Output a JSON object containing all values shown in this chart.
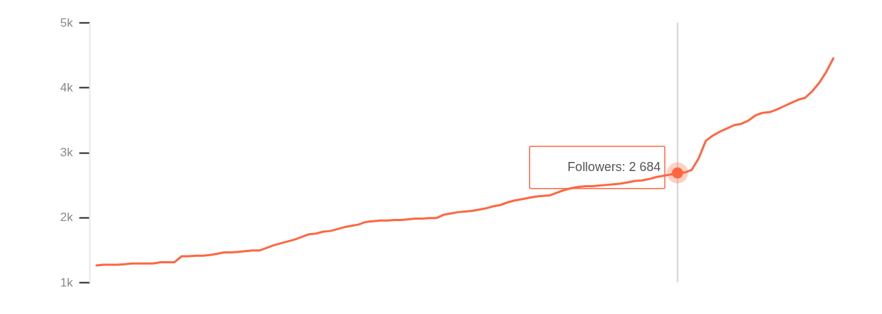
{
  "chart_data": {
    "type": "line",
    "categories": [
      null,
      null,
      null,
      null,
      null,
      null,
      null,
      null,
      null,
      null,
      null,
      null,
      null,
      null,
      null,
      null,
      null,
      null,
      null,
      null,
      null,
      null,
      null,
      null,
      null,
      null,
      null,
      null,
      null,
      null,
      null,
      null,
      null,
      null,
      null,
      null,
      null,
      null,
      null,
      null,
      null,
      null,
      null,
      null,
      null,
      null,
      null,
      null,
      null,
      null,
      null,
      null,
      null,
      null,
      null,
      null,
      null,
      null,
      null,
      null,
      null,
      null,
      null,
      null,
      null,
      null,
      null,
      null,
      null,
      null,
      null,
      null,
      null,
      null,
      null,
      null,
      null,
      null,
      null,
      null,
      null,
      null,
      null,
      null,
      null,
      null,
      null,
      null,
      null,
      null,
      null,
      null,
      null,
      null,
      null,
      null,
      null,
      null,
      null,
      null,
      null,
      null,
      null,
      null,
      null
    ],
    "series": [
      {
        "color": "#ff6640",
        "values": [
          1260,
          1270,
          1270,
          1270,
          1280,
          1290,
          1290,
          1290,
          1290,
          1310,
          1310,
          1310,
          1400,
          1400,
          1410,
          1410,
          1420,
          1440,
          1460,
          1460,
          1470,
          1480,
          1490,
          1490,
          1530,
          1570,
          1600,
          1630,
          1660,
          1700,
          1740,
          1750,
          1780,
          1790,
          1820,
          1850,
          1870,
          1890,
          1930,
          1940,
          1950,
          1950,
          1960,
          1960,
          1970,
          1980,
          1980,
          1990,
          1990,
          2040,
          2060,
          2080,
          2090,
          2100,
          2120,
          2140,
          2170,
          2190,
          2230,
          2260,
          2280,
          2300,
          2320,
          2330,
          2340,
          2380,
          2420,
          2450,
          2470,
          2480,
          2480,
          2490,
          2500,
          2510,
          2520,
          2540,
          2560,
          2570,
          2590,
          2620,
          2640,
          2660,
          2684,
          2690,
          2730,
          2910,
          3180,
          3260,
          3320,
          3370,
          3420,
          3440,
          3490,
          3570,
          3610,
          3620,
          3660,
          3710,
          3760,
          3810,
          3840,
          3940,
          4070,
          4240,
          4450
        ],
        "value_labels": [
          null,
          null,
          null,
          null,
          null,
          null,
          null,
          null,
          null,
          null,
          null,
          null,
          null,
          null,
          null,
          null,
          null,
          null,
          null,
          null,
          null,
          null,
          null,
          null,
          null,
          null,
          null,
          null,
          null,
          null,
          null,
          null,
          null,
          null,
          null,
          null,
          null,
          null,
          null,
          null,
          null,
          null,
          null,
          null,
          null,
          null,
          null,
          null,
          null,
          null,
          null,
          null,
          null,
          null,
          null,
          null,
          null,
          null,
          null,
          null,
          null,
          null,
          null,
          null,
          null,
          null,
          null,
          null,
          null,
          null,
          null,
          null,
          null,
          null,
          null,
          null,
          null,
          null,
          null,
          null,
          null,
          null,
          "Followers: 2 684",
          null,
          null,
          null,
          null,
          null,
          null,
          null,
          null,
          null,
          null,
          null,
          null,
          null,
          null,
          null,
          null,
          null,
          null,
          null,
          null,
          null,
          null
        ]
      }
    ],
    "ylim": [
      1000,
      5000
    ],
    "yticks": [
      {
        "value": 1000,
        "label": "1k"
      },
      {
        "value": 2000,
        "label": "2k"
      },
      {
        "value": 3000,
        "label": "3k"
      },
      {
        "value": 4000,
        "label": "4k"
      },
      {
        "value": 5000,
        "label": "5k"
      }
    ],
    "tick_labels": "y"
  }
}
